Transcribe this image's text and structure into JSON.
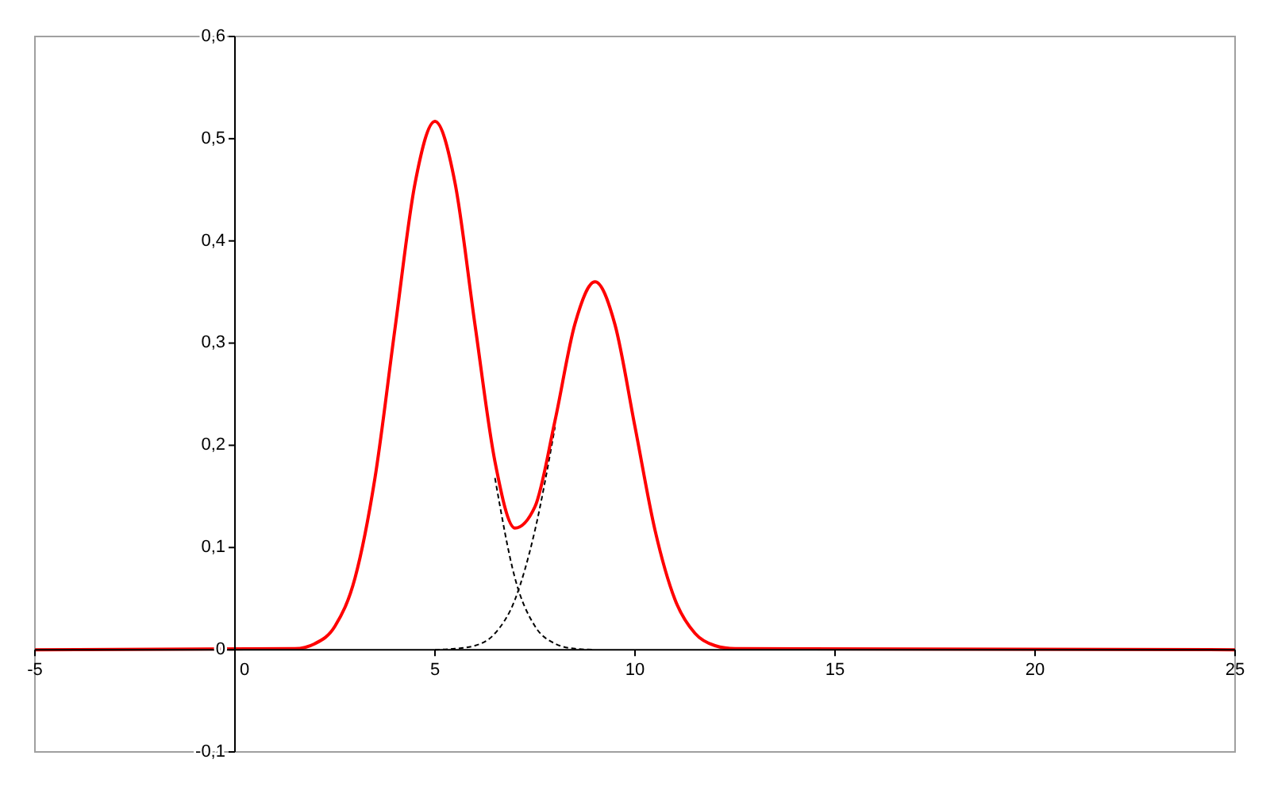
{
  "chart_data": {
    "type": "line",
    "xlim": [
      -5,
      25
    ],
    "ylim": [
      -0.1,
      0.6
    ],
    "xticks": [
      -5,
      0,
      5,
      10,
      15,
      20,
      25
    ],
    "yticks": [
      {
        "value": -0.1,
        "label": "-0,1"
      },
      {
        "value": 0,
        "label": "0"
      },
      {
        "value": 0.1,
        "label": "0,1"
      },
      {
        "value": 0.2,
        "label": "0,2"
      },
      {
        "value": 0.3,
        "label": "0,3"
      },
      {
        "value": 0.4,
        "label": "0,4"
      },
      {
        "value": 0.5,
        "label": "0,5"
      },
      {
        "value": 0.6,
        "label": "0,6"
      }
    ],
    "series": [
      {
        "color": "#000000",
        "line_style": "dashed",
        "x": [
          6.5,
          7,
          7.5,
          8,
          8.5,
          9
        ],
        "values": [
          0.168,
          0.07,
          0.023,
          0.006,
          0.001,
          0
        ]
      },
      {
        "color": "#000000",
        "line_style": "dashed",
        "x": [
          5,
          5.5,
          6,
          6.5,
          7,
          7.5,
          8
        ],
        "values": [
          0,
          0.001,
          0.004,
          0.016,
          0.049,
          0.117,
          0.218
        ]
      },
      {
        "color": "#ff0000",
        "line_style": "solid",
        "x": [
          -5,
          1.5,
          2,
          2.5,
          3,
          3.5,
          4,
          4.5,
          5,
          5.5,
          6,
          6.5,
          7,
          7.5,
          8,
          8.5,
          9,
          9.5,
          10,
          10.5,
          11,
          11.5,
          12,
          12.5,
          25
        ],
        "values": [
          0,
          0.001,
          0.006,
          0.023,
          0.07,
          0.168,
          0.314,
          0.456,
          0.517,
          0.457,
          0.318,
          0.184,
          0.119,
          0.14,
          0.224,
          0.319,
          0.36,
          0.318,
          0.218,
          0.117,
          0.049,
          0.016,
          0.004,
          0.001,
          0
        ]
      }
    ]
  }
}
